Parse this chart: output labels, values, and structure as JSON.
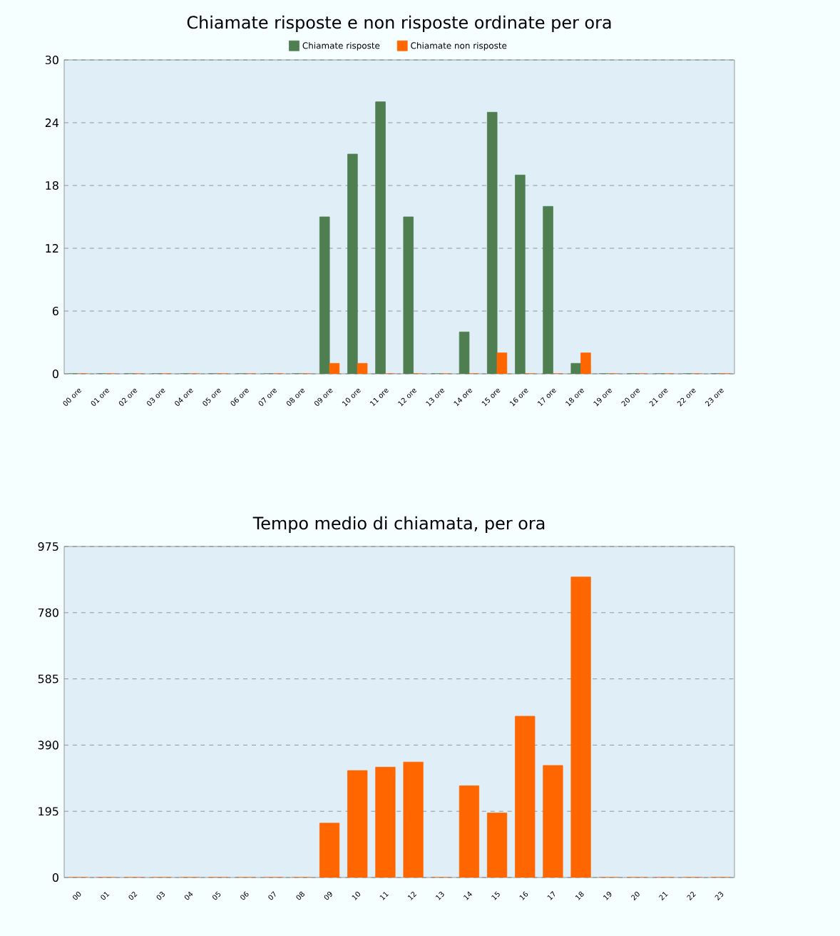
{
  "chart_data": [
    {
      "type": "bar",
      "title": "Chiamate risposte e non risposte ordinate per ora",
      "categories": [
        "00 ore",
        "01 ore",
        "02 ore",
        "03 ore",
        "04 ore",
        "05 ore",
        "06 ore",
        "07 ore",
        "08 ore",
        "09 ore",
        "10 ore",
        "11 ore",
        "12 ore",
        "13 ore",
        "14 ore",
        "15 ore",
        "16 ore",
        "17 ore",
        "18 ore",
        "19 ore",
        "20 ore",
        "21 ore",
        "22 ore",
        "23 ore"
      ],
      "series": [
        {
          "name": "Chiamate risposte",
          "color": "#4f7f50",
          "values": [
            0,
            0,
            0,
            0,
            0,
            0,
            0,
            0,
            0,
            15,
            21,
            26,
            15,
            0,
            4,
            25,
            19,
            16,
            1,
            0,
            0,
            0,
            0,
            0
          ]
        },
        {
          "name": "Chiamate non risposte",
          "color": "#ff6600",
          "values": [
            0,
            0,
            0,
            0,
            0,
            0,
            0,
            0,
            0,
            1,
            1,
            0,
            0,
            0,
            0,
            2,
            0,
            0,
            2,
            0,
            0,
            0,
            0,
            0
          ]
        }
      ],
      "ylim": [
        0,
        30
      ],
      "yticks": [
        0,
        6,
        12,
        18,
        24,
        30
      ],
      "grid": "y",
      "legend": "top"
    },
    {
      "type": "bar",
      "title": "Tempo medio di chiamata, per ora",
      "categories": [
        "00",
        "01",
        "02",
        "03",
        "04",
        "05",
        "06",
        "07",
        "08",
        "09",
        "10",
        "11",
        "12",
        "13",
        "14",
        "15",
        "16",
        "17",
        "18",
        "19",
        "20",
        "21",
        "22",
        "23"
      ],
      "values": [
        0,
        0,
        0,
        0,
        0,
        0,
        0,
        0,
        0,
        160,
        315,
        325,
        340,
        0,
        270,
        190,
        475,
        330,
        885,
        0,
        0,
        0,
        0,
        0
      ],
      "color": "#ff6600",
      "ylim": [
        0,
        975
      ],
      "yticks": [
        0,
        195,
        390,
        585,
        780,
        975
      ],
      "grid": "y"
    }
  ]
}
